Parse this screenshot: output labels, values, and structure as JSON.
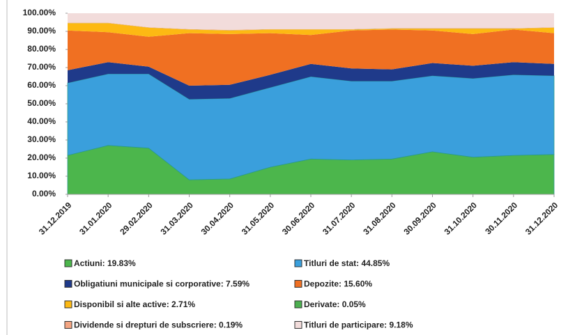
{
  "chart_data": {
    "type": "stacked_area",
    "categories": [
      "31.12.2019",
      "31.01.2020",
      "29.02.2020",
      "31.03.2020",
      "30.04.2020",
      "31.05.2020",
      "30.06.2020",
      "31.07.2020",
      "31.08.2020",
      "30.09.2020",
      "31.10.2020",
      "30.11.2020",
      "31.12.2020"
    ],
    "ylim": [
      0,
      100
    ],
    "yticks": [
      {
        "value": 0,
        "label": "0.00%"
      },
      {
        "value": 10,
        "label": "10.00%"
      },
      {
        "value": 20,
        "label": "20.00%"
      },
      {
        "value": 30,
        "label": "30.00%"
      },
      {
        "value": 40,
        "label": "40.00%"
      },
      {
        "value": 50,
        "label": "50.00%"
      },
      {
        "value": 60,
        "label": "60.00%"
      },
      {
        "value": 70,
        "label": "70.00%"
      },
      {
        "value": 80,
        "label": "80.00%"
      },
      {
        "value": 90,
        "label": "90.00%"
      },
      {
        "value": 100,
        "label": "100.00%"
      }
    ],
    "legend": "bottom",
    "series": [
      {
        "name": "Actiuni: 19.83%",
        "color": "#4cb64c",
        "values": [
          21.5,
          27,
          25.5,
          8,
          8.5,
          15,
          19.5,
          19,
          19.5,
          23.5,
          20.5,
          21.5,
          22
        ]
      },
      {
        "name": "Titluri de stat: 44.85%",
        "color": "#3a9fdc",
        "values": [
          40,
          39.5,
          41,
          44.5,
          44.5,
          44,
          45.5,
          43.5,
          43,
          42,
          43.5,
          44.5,
          43.5
        ]
      },
      {
        "name": "Obligatiuni municipale si corporative: 7.59%",
        "color": "#1f3a8a",
        "values": [
          7,
          6.5,
          4,
          7.5,
          7.5,
          7,
          7,
          7,
          6.5,
          7,
          7,
          7,
          6.5
        ]
      },
      {
        "name": "Depozite: 15.60%",
        "color": "#f07022",
        "values": [
          22,
          16.5,
          16.5,
          29,
          28,
          23,
          16,
          21,
          22,
          18,
          17.5,
          18,
          17
        ]
      },
      {
        "name": "Disponibil si alte active: 2.71%",
        "color": "#fdb913",
        "values": [
          4,
          5,
          5,
          2,
          2,
          2,
          3,
          0.5,
          0.5,
          1,
          3,
          0.5,
          3
        ]
      },
      {
        "name": "Derivate: 0.05%",
        "color": "#4caf50",
        "values": [
          0.05,
          0.05,
          0.05,
          0.05,
          0.05,
          0.05,
          0.05,
          0.05,
          0.05,
          0.05,
          0.05,
          0.05,
          0.05
        ]
      },
      {
        "name": "Dividende si drepturi de subscriere: 0.19%",
        "color": "#f4a582",
        "values": [
          0.2,
          0.2,
          0.2,
          0.2,
          0.2,
          0.2,
          0.2,
          0.2,
          0.2,
          0.2,
          0.2,
          0.2,
          0.2
        ]
      },
      {
        "name": "Titluri de participare: 9.18%",
        "color": "#f2dcdb",
        "values": [
          5.25,
          5.25,
          7.75,
          8.75,
          9.25,
          8.75,
          8.75,
          8.75,
          8.25,
          8.25,
          8.25,
          8.25,
          7.75
        ]
      }
    ]
  }
}
